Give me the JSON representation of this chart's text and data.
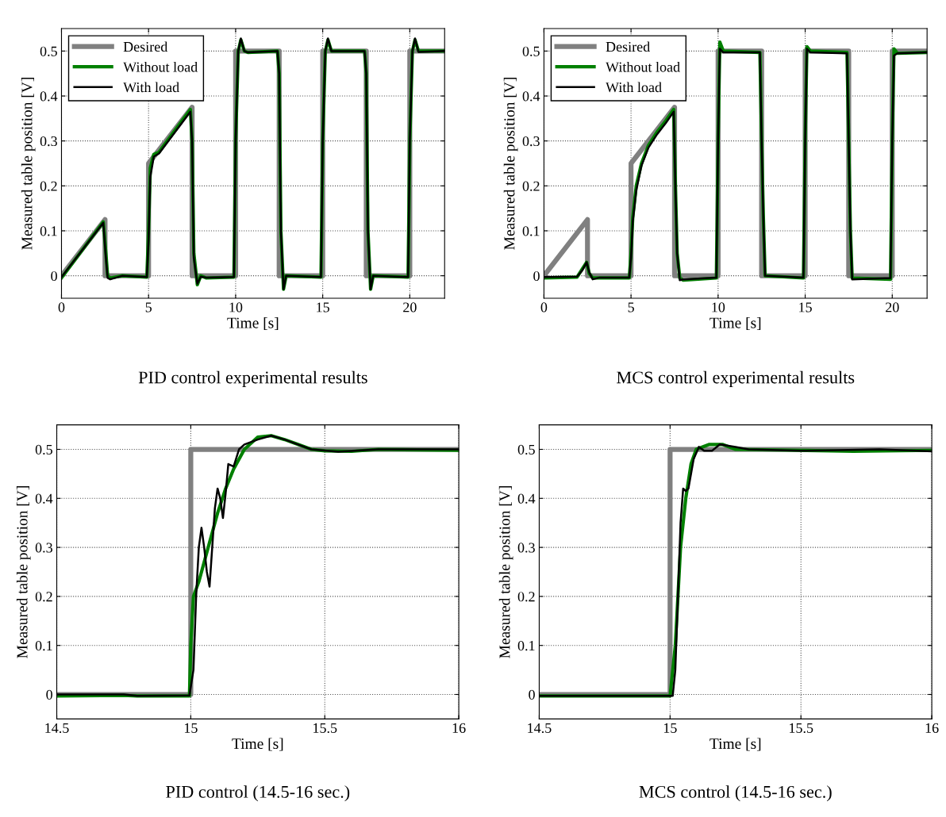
{
  "chart_data": [
    {
      "type": "line",
      "title": "PID control experimental results",
      "xlabel": "Time [s]",
      "ylabel": "Measured table position [V]",
      "xlim": [
        0,
        22
      ],
      "ylim": [
        -0.05,
        0.55
      ],
      "xticks": [
        0,
        5,
        10,
        15,
        20
      ],
      "yticks": [
        0,
        0.1,
        0.2,
        0.3,
        0.4,
        0.5
      ],
      "grid": true,
      "legend": "top left",
      "line_style": "solid",
      "marker": "none",
      "series": [
        {
          "name": "Desired",
          "color": "#808080",
          "x": [
            0,
            2.5,
            2.5,
            5,
            5,
            7.5,
            7.5,
            10,
            10,
            12.5,
            12.5,
            15,
            15,
            17.5,
            17.5,
            20,
            20,
            22
          ],
          "values": [
            0,
            0.125,
            0,
            0,
            0.25,
            0.375,
            0,
            0,
            0.5,
            0.5,
            0,
            0,
            0.5,
            0.5,
            0,
            0,
            0.5,
            0.5
          ]
        },
        {
          "name": "Without load",
          "color": "#008000",
          "x": [
            0,
            2.4,
            2.55,
            2.65,
            2.8,
            3.5,
            4.9,
            5.0,
            5.1,
            5.3,
            5.6,
            7.4,
            7.5,
            7.6,
            7.8,
            8.0,
            8.3,
            9.9,
            10.0,
            10.15,
            10.3,
            10.5,
            10.7,
            12.4,
            12.5,
            12.6,
            12.75,
            12.9,
            14.9,
            15.0,
            15.15,
            15.3,
            15.5,
            17.4,
            17.5,
            17.6,
            17.75,
            17.9,
            19.9,
            20.0,
            20.15,
            20.3,
            20.5,
            22
          ],
          "values": [
            -0.005,
            0.12,
            0.05,
            0.0,
            -0.005,
            0,
            -0.003,
            0.1,
            0.24,
            0.27,
            0.275,
            0.37,
            0.3,
            0.05,
            -0.02,
            0.0,
            -0.005,
            -0.003,
            0.3,
            0.5,
            0.525,
            0.5,
            0.497,
            0.5,
            0.45,
            0.1,
            -0.03,
            0.0,
            -0.003,
            0.3,
            0.5,
            0.525,
            0.5,
            0.5,
            0.45,
            0.1,
            -0.03,
            0.0,
            -0.003,
            0.3,
            0.5,
            0.525,
            0.5,
            0.5
          ]
        },
        {
          "name": "With load",
          "color": "#000000",
          "x": [
            0,
            2.4,
            2.55,
            2.65,
            2.8,
            3.5,
            4.9,
            5.0,
            5.1,
            5.3,
            5.6,
            7.4,
            7.5,
            7.6,
            7.8,
            8.0,
            8.3,
            9.9,
            10.0,
            10.15,
            10.3,
            10.5,
            10.7,
            12.4,
            12.5,
            12.6,
            12.75,
            12.9,
            14.9,
            15.0,
            15.15,
            15.3,
            15.5,
            17.4,
            17.5,
            17.6,
            17.75,
            17.9,
            19.9,
            20.0,
            20.15,
            20.3,
            20.5,
            22
          ],
          "values": [
            -0.003,
            0.118,
            0.04,
            -0.005,
            -0.008,
            0,
            -0.003,
            0.08,
            0.22,
            0.265,
            0.272,
            0.365,
            0.3,
            0.04,
            -0.018,
            -0.002,
            -0.004,
            -0.003,
            0.3,
            0.5,
            0.528,
            0.5,
            0.497,
            0.5,
            0.45,
            0.1,
            -0.03,
            0.0,
            -0.003,
            0.3,
            0.5,
            0.528,
            0.5,
            0.5,
            0.45,
            0.1,
            -0.03,
            0.0,
            -0.003,
            0.3,
            0.5,
            0.528,
            0.498,
            0.5
          ]
        }
      ]
    },
    {
      "type": "line",
      "title": "MCS control experimental results",
      "xlabel": "Time [s]",
      "ylabel": "Measured table position [V]",
      "xlim": [
        0,
        22
      ],
      "ylim": [
        -0.05,
        0.55
      ],
      "xticks": [
        0,
        5,
        10,
        15,
        20
      ],
      "yticks": [
        0,
        0.1,
        0.2,
        0.3,
        0.4,
        0.5
      ],
      "grid": true,
      "legend": "top left",
      "line_style": "solid",
      "marker": "none",
      "series": [
        {
          "name": "Desired",
          "color": "#808080",
          "x": [
            0,
            2.5,
            2.5,
            5,
            5,
            7.5,
            7.5,
            10,
            10,
            12.5,
            12.5,
            15,
            15,
            17.5,
            17.5,
            20,
            20,
            22
          ],
          "values": [
            0,
            0.125,
            0,
            0,
            0.25,
            0.375,
            0,
            0,
            0.5,
            0.5,
            0,
            0,
            0.5,
            0.5,
            0,
            0,
            0.5,
            0.5
          ]
        },
        {
          "name": "Without load",
          "color": "#008000",
          "x": [
            0,
            1.9,
            2.2,
            2.45,
            2.6,
            2.8,
            3.2,
            4.9,
            5.0,
            5.1,
            5.3,
            5.6,
            6.0,
            6.5,
            7.0,
            7.45,
            7.55,
            7.65,
            7.8,
            8.0,
            9.9,
            10.0,
            10.1,
            10.3,
            12.4,
            12.5,
            12.6,
            12.7,
            14.9,
            15.0,
            15.1,
            15.3,
            17.4,
            17.5,
            17.6,
            17.7,
            19.9,
            20.0,
            20.1,
            20.3,
            22
          ],
          "values": [
            -0.005,
            -0.003,
            0.015,
            0.03,
            0.005,
            -0.005,
            -0.005,
            -0.005,
            0.05,
            0.13,
            0.2,
            0.25,
            0.29,
            0.32,
            0.345,
            0.37,
            0.2,
            0.05,
            -0.005,
            -0.01,
            -0.005,
            0.3,
            0.52,
            0.5,
            0.497,
            0.3,
            0.13,
            0.0,
            -0.005,
            0.3,
            0.51,
            0.5,
            0.497,
            0.3,
            0.1,
            -0.005,
            -0.008,
            0.3,
            0.505,
            0.495,
            0.497
          ]
        },
        {
          "name": "With load",
          "color": "#000000",
          "x": [
            0,
            1.9,
            2.2,
            2.45,
            2.6,
            2.8,
            3.2,
            4.9,
            5.0,
            5.1,
            5.3,
            5.6,
            6.0,
            6.5,
            7.0,
            7.45,
            7.55,
            7.65,
            7.8,
            8.0,
            9.9,
            10.0,
            10.1,
            10.3,
            12.4,
            12.5,
            12.6,
            12.7,
            14.9,
            15.0,
            15.1,
            15.3,
            17.4,
            17.5,
            17.6,
            17.7,
            19.9,
            20.0,
            20.1,
            20.3,
            22
          ],
          "values": [
            -0.003,
            -0.002,
            0.012,
            0.03,
            0.008,
            -0.008,
            -0.004,
            -0.004,
            0.04,
            0.12,
            0.19,
            0.245,
            0.285,
            0.315,
            0.34,
            0.365,
            0.2,
            0.05,
            -0.01,
            -0.008,
            -0.004,
            0.3,
            0.505,
            0.497,
            0.497,
            0.3,
            0.13,
            0.0,
            -0.004,
            0.3,
            0.505,
            0.497,
            0.495,
            0.3,
            0.1,
            -0.008,
            -0.005,
            0.3,
            0.49,
            0.495,
            0.497
          ]
        }
      ]
    },
    {
      "type": "line",
      "title": "PID control (14.5-16 sec.)",
      "xlabel": "Time [s]",
      "ylabel": "Measured table position [V]",
      "xlim": [
        14.5,
        16
      ],
      "ylim": [
        -0.05,
        0.55
      ],
      "xticks": [
        14.5,
        15,
        15.5,
        16
      ],
      "yticks": [
        0,
        0.1,
        0.2,
        0.3,
        0.4,
        0.5
      ],
      "grid": true,
      "line_style": "solid",
      "marker": "none",
      "series": [
        {
          "color": "#808080",
          "x": [
            14.5,
            15,
            15,
            16
          ],
          "values": [
            0,
            0,
            0.5,
            0.5
          ]
        },
        {
          "color": "#008000",
          "x": [
            14.5,
            14.75,
            14.8,
            14.995,
            15.0,
            15.01,
            15.03,
            15.05,
            15.08,
            15.1,
            15.13,
            15.16,
            15.2,
            15.25,
            15.3,
            15.35,
            15.4,
            15.45,
            15.5,
            15.6,
            15.7,
            16
          ],
          "values": [
            -0.003,
            -0.002,
            -0.003,
            -0.003,
            0.1,
            0.2,
            0.23,
            0.27,
            0.33,
            0.37,
            0.42,
            0.46,
            0.5,
            0.525,
            0.528,
            0.52,
            0.51,
            0.5,
            0.497,
            0.496,
            0.5,
            0.498
          ]
        },
        {
          "color": "#000000",
          "x": [
            14.5,
            14.75,
            14.8,
            14.995,
            15.01,
            15.02,
            15.03,
            15.04,
            15.05,
            15.06,
            15.07,
            15.08,
            15.09,
            15.1,
            15.11,
            15.12,
            15.13,
            15.14,
            15.16,
            15.18,
            15.2,
            15.25,
            15.3,
            15.35,
            15.4,
            15.45,
            15.55,
            15.7,
            16
          ],
          "values": [
            0.0,
            0.0,
            -0.003,
            -0.002,
            0.05,
            0.2,
            0.3,
            0.34,
            0.3,
            0.25,
            0.22,
            0.3,
            0.38,
            0.42,
            0.4,
            0.36,
            0.41,
            0.47,
            0.465,
            0.5,
            0.51,
            0.52,
            0.528,
            0.52,
            0.51,
            0.5,
            0.495,
            0.5,
            0.5
          ]
        }
      ]
    },
    {
      "type": "line",
      "title": "MCS control (14.5-16 sec.)",
      "xlabel": "Time [s]",
      "ylabel": "Measured table position [V]",
      "xlim": [
        14.5,
        16
      ],
      "ylim": [
        -0.05,
        0.55
      ],
      "xticks": [
        14.5,
        15,
        15.5,
        16
      ],
      "yticks": [
        0,
        0.1,
        0.2,
        0.3,
        0.4,
        0.5
      ],
      "grid": true,
      "line_style": "solid",
      "marker": "none",
      "series": [
        {
          "color": "#808080",
          "x": [
            14.5,
            15,
            15,
            16
          ],
          "values": [
            0,
            0,
            0.5,
            0.5
          ]
        },
        {
          "color": "#008000",
          "x": [
            14.5,
            15,
            15.02,
            15.04,
            15.06,
            15.08,
            15.1,
            15.15,
            15.2,
            15.25,
            15.5,
            15.7,
            16
          ],
          "values": [
            -0.003,
            -0.003,
            0.1,
            0.3,
            0.4,
            0.47,
            0.5,
            0.51,
            0.51,
            0.5,
            0.498,
            0.496,
            0.498
          ]
        },
        {
          "color": "#000000",
          "x": [
            14.5,
            15.01,
            15.02,
            15.03,
            15.04,
            15.05,
            15.06,
            15.07,
            15.09,
            15.11,
            15.13,
            15.16,
            15.19,
            15.25,
            15.3,
            15.5,
            15.8,
            16
          ],
          "values": [
            -0.003,
            -0.003,
            0.05,
            0.2,
            0.35,
            0.42,
            0.415,
            0.42,
            0.48,
            0.505,
            0.497,
            0.497,
            0.51,
            0.505,
            0.5,
            0.497,
            0.5,
            0.496
          ]
        }
      ]
    }
  ]
}
